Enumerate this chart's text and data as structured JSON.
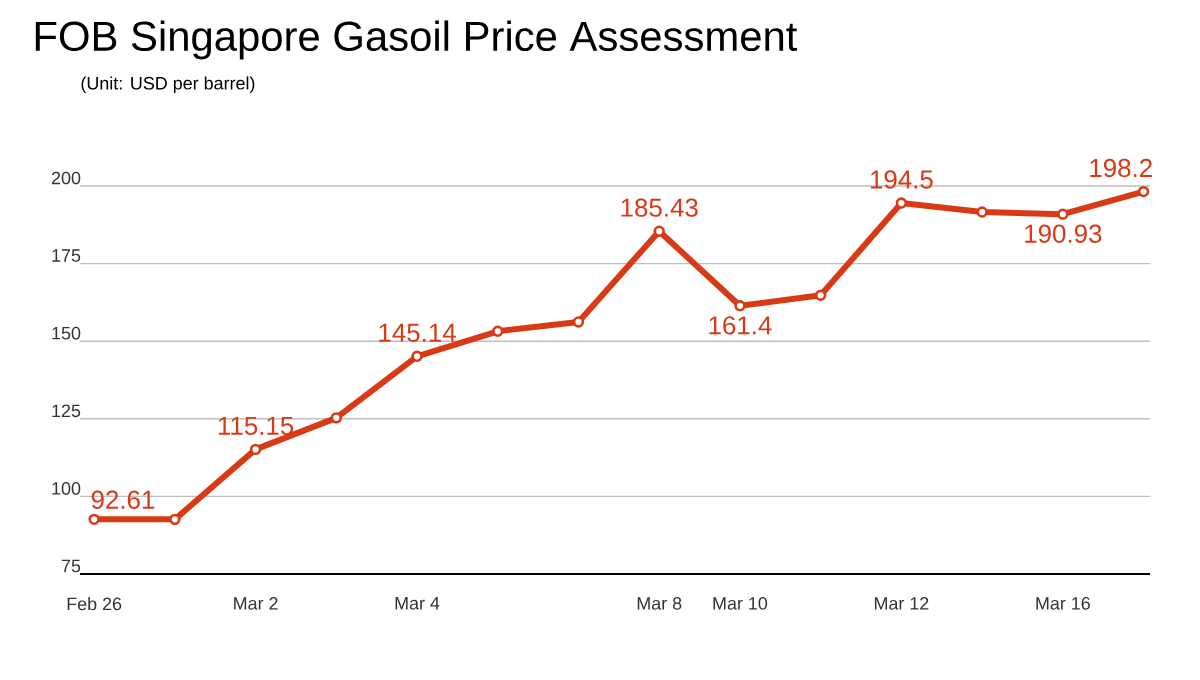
{
  "chart_data": {
    "type": "line",
    "title": "FOB Singapore Gasoil Price Assessment",
    "subtitle": "(Unit: USD per barrel)",
    "categories": [
      "Feb 26",
      null,
      "Mar 2",
      null,
      "Mar 4",
      null,
      null,
      "Mar 8",
      "Mar 10",
      null,
      "Mar 12",
      null,
      "Mar 16",
      null
    ],
    "series": [
      {
        "color": "#d83a16",
        "values": [
          92.61,
          92.6,
          115.15,
          125.3,
          145.14,
          153.2,
          156.2,
          185.43,
          161.4,
          164.8,
          194.5,
          191.6,
          190.93,
          198.2
        ],
        "value_labels": [
          "92.61",
          null,
          "115.15",
          null,
          "145.14",
          null,
          null,
          "185.43",
          "161.4",
          null,
          "194.5",
          null,
          "190.93",
          "198.2"
        ]
      }
    ],
    "ylim": [
      75,
      200
    ],
    "yticks": [
      75,
      100,
      125,
      150,
      175,
      200
    ],
    "grid": "y",
    "marker": "circle",
    "line_style": "solid"
  }
}
